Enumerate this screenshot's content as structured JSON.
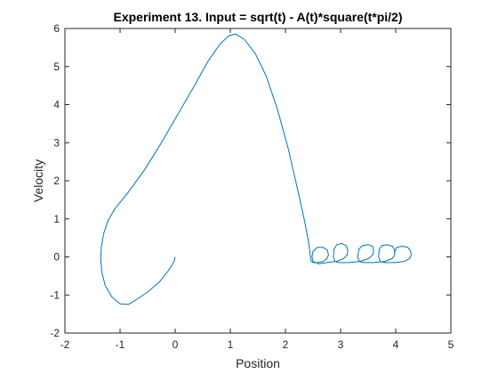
{
  "chart_data": {
    "type": "line",
    "title": "Experiment 13. Input = sqrt(t) - A(t)*square(t*pi/2)",
    "xlabel": "Position",
    "ylabel": "Velocity",
    "xlim": [
      -2,
      5
    ],
    "ylim": [
      -2,
      6
    ],
    "xticks": [
      -2,
      -1,
      0,
      1,
      2,
      3,
      4,
      5
    ],
    "yticks": [
      -2,
      -1,
      0,
      1,
      2,
      3,
      4,
      5,
      6
    ],
    "grid": false,
    "legend": "none",
    "series": [
      {
        "color": "#0072BD",
        "x": [
          0.0,
          -0.02,
          -0.12,
          -0.28,
          -0.48,
          -0.7,
          -0.85,
          -1.0,
          -1.15,
          -1.27,
          -1.33,
          -1.35,
          -1.34,
          -1.3,
          -1.22,
          -1.1,
          -0.85,
          -0.55,
          -0.25,
          0.05,
          0.35,
          0.6,
          0.82,
          0.98,
          1.1,
          1.25,
          1.45,
          1.65,
          1.85,
          2.05,
          2.2,
          2.33,
          2.42,
          2.45,
          2.46,
          2.5,
          2.58,
          2.68,
          2.75,
          2.78,
          2.76,
          2.68,
          2.58,
          2.5,
          2.48,
          2.5,
          2.6,
          2.75,
          2.92,
          3.05,
          3.12,
          3.13,
          3.1,
          3.02,
          2.93,
          2.88,
          2.87,
          2.9,
          2.98,
          3.15,
          3.35,
          3.5,
          3.58,
          3.6,
          3.58,
          3.5,
          3.4,
          3.33,
          3.31,
          3.34,
          3.42,
          3.6,
          3.8,
          3.93,
          3.98,
          3.98,
          3.94,
          3.85,
          3.75,
          3.7,
          3.69,
          3.72,
          3.8,
          3.98,
          4.15,
          4.25,
          4.28,
          4.27,
          4.22,
          4.12,
          4.02,
          3.97
        ],
        "y": [
          0.0,
          -0.12,
          -0.35,
          -0.65,
          -0.9,
          -1.12,
          -1.25,
          -1.23,
          -1.05,
          -0.75,
          -0.4,
          -0.05,
          0.25,
          0.6,
          0.95,
          1.25,
          1.7,
          2.3,
          3.0,
          3.75,
          4.5,
          5.15,
          5.6,
          5.82,
          5.85,
          5.72,
          5.35,
          4.75,
          3.9,
          2.85,
          1.9,
          1.05,
          0.4,
          0.05,
          -0.1,
          -0.15,
          -0.15,
          -0.12,
          -0.05,
          0.05,
          0.18,
          0.25,
          0.25,
          0.15,
          0.0,
          -0.12,
          -0.18,
          -0.15,
          -0.12,
          -0.05,
          0.05,
          0.18,
          0.3,
          0.35,
          0.32,
          0.2,
          0.0,
          -0.12,
          -0.15,
          -0.15,
          -0.12,
          -0.05,
          0.05,
          0.18,
          0.28,
          0.32,
          0.3,
          0.2,
          0.0,
          -0.12,
          -0.15,
          -0.15,
          -0.12,
          -0.05,
          0.05,
          0.18,
          0.28,
          0.32,
          0.3,
          0.2,
          0.0,
          -0.12,
          -0.15,
          -0.15,
          -0.12,
          -0.05,
          0.05,
          0.15,
          0.25,
          0.28,
          0.25,
          0.1
        ]
      }
    ]
  }
}
